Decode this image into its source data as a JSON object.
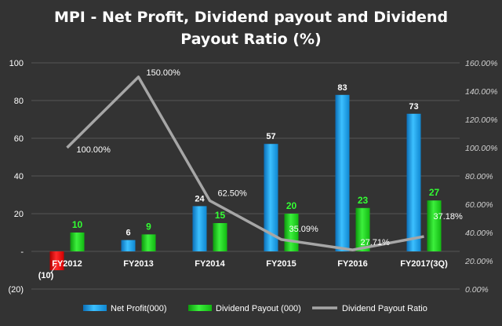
{
  "chart_data": {
    "type": "bar",
    "title": "MPI - Net Profit, Dividend payout and Dividend Payout Ratio (%)",
    "title_lines": [
      "MPI - Net Profit, Dividend payout and Dividend",
      "Payout Ratio (%)"
    ],
    "categories": [
      "FY2012",
      "FY2013",
      "FY2014",
      "FY2015",
      "FY2016",
      "FY2017(3Q)"
    ],
    "series": [
      {
        "name": "Net Profit(000)",
        "type": "bar",
        "axis": "left",
        "values": [
          -10,
          6,
          24,
          57,
          83,
          73
        ],
        "labels": [
          "(10)",
          "6",
          "24",
          "57",
          "83",
          "73"
        ],
        "color": "#1ea7f0",
        "negative_color": "#ee1111"
      },
      {
        "name": "Dividend Payout (000)",
        "type": "bar",
        "axis": "left",
        "values": [
          10,
          9,
          15,
          20,
          23,
          27
        ],
        "labels": [
          "10",
          "9",
          "15",
          "20",
          "23",
          "27"
        ],
        "color": "#1fd81f"
      },
      {
        "name": "Dividend Payout Ratio",
        "type": "line",
        "axis": "right",
        "values": [
          100.0,
          150.0,
          62.5,
          35.09,
          27.71,
          37.18
        ],
        "labels": [
          "100.00%",
          "150.00%",
          "62.50%",
          "35.09%",
          "27.71%",
          "37.18%"
        ],
        "color": "#a6a6a6"
      }
    ],
    "y_left": {
      "ylim": [
        -20,
        100
      ],
      "ticks": [
        -20,
        0,
        20,
        40,
        60,
        80,
        100
      ],
      "tick_labels": [
        "(20)",
        "-",
        "20",
        "40",
        "60",
        "80",
        "100"
      ]
    },
    "y_right": {
      "ylim": [
        0,
        160
      ],
      "ticks": [
        0,
        20,
        40,
        60,
        80,
        100,
        120,
        140,
        160
      ],
      "tick_labels": [
        "0.00%",
        "20.00%",
        "40.00%",
        "60.00%",
        "80.00%",
        "100.00%",
        "120.00%",
        "140.00%",
        "160.00%"
      ]
    },
    "grid": true,
    "legend_position": "bottom",
    "colors": {
      "background": "#333333",
      "gridline": "#555555"
    }
  }
}
